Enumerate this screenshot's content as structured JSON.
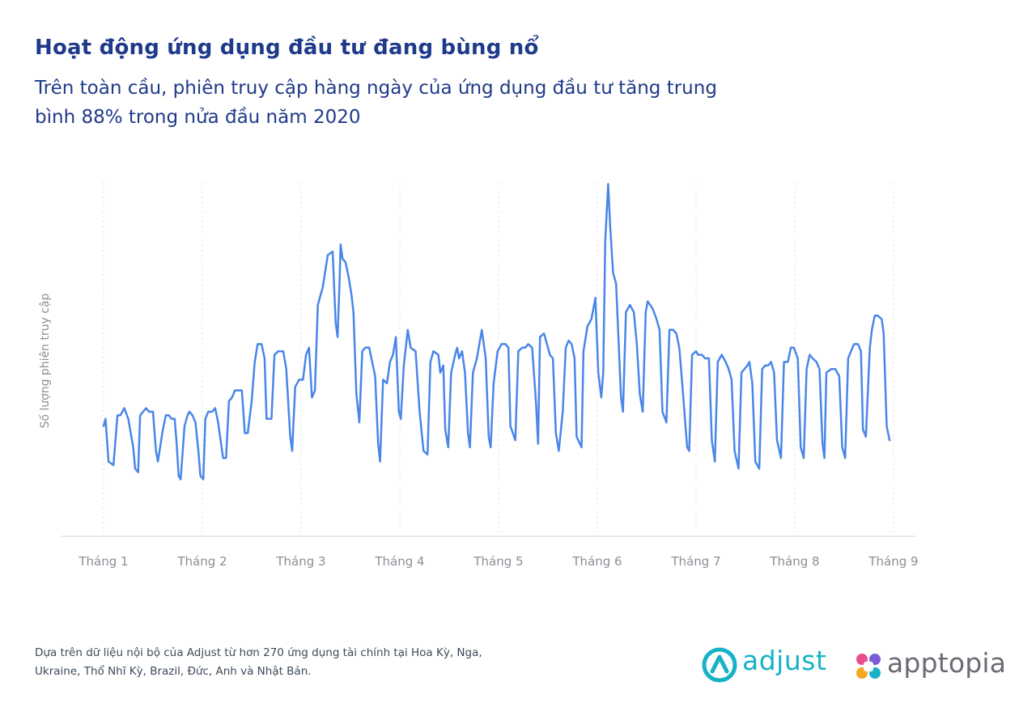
{
  "header": {
    "title": "Hoạt động ứng dụng đầu tư đang bùng nổ",
    "subtitle": "Trên toàn cầu, phiên truy cập hàng ngày của ứng dụng đầu tư tăng trung bình 88% trong nửa đầu năm 2020"
  },
  "colors": {
    "line": "#4a86e8",
    "title": "#1f3a8a",
    "grid": "#d9dde3",
    "axis": "#d0d4d9",
    "tick_label": "#8a8f96",
    "adjust_brand": "#16b3c6",
    "apptopia_text": "#6b6b73"
  },
  "chart_data": {
    "type": "line",
    "title": "",
    "xlabel": "",
    "ylabel": "Số lượng phiên truy cập",
    "xlim": [
      0,
      8
    ],
    "ylim": [
      0,
      100
    ],
    "grid": "vertical dotted lines at each month",
    "legend": "none",
    "tick_labels": [
      "Tháng 1",
      "Tháng 2",
      "Tháng 3",
      "Tháng 4",
      "Tháng 5",
      "Tháng 6",
      "Tháng 7",
      "Tháng 8",
      "Tháng 9"
    ],
    "series": [
      {
        "name": "",
        "points": [
          [
            0.0,
            31
          ],
          [
            0.02,
            33
          ],
          [
            0.05,
            21
          ],
          [
            0.1,
            20
          ],
          [
            0.14,
            34
          ],
          [
            0.17,
            34
          ],
          [
            0.21,
            36
          ],
          [
            0.25,
            33
          ],
          [
            0.3,
            25
          ],
          [
            0.32,
            19
          ],
          [
            0.35,
            18
          ],
          [
            0.37,
            34
          ],
          [
            0.4,
            35
          ],
          [
            0.43,
            36
          ],
          [
            0.46,
            35
          ],
          [
            0.5,
            35
          ],
          [
            0.53,
            24
          ],
          [
            0.55,
            21
          ],
          [
            0.6,
            30
          ],
          [
            0.63,
            34
          ],
          [
            0.66,
            34
          ],
          [
            0.69,
            33
          ],
          [
            0.72,
            33
          ],
          [
            0.74,
            26
          ],
          [
            0.76,
            17
          ],
          [
            0.78,
            16
          ],
          [
            0.82,
            31
          ],
          [
            0.85,
            34
          ],
          [
            0.87,
            35
          ],
          [
            0.9,
            34
          ],
          [
            0.93,
            32
          ],
          [
            0.96,
            24
          ],
          [
            0.98,
            17
          ],
          [
            1.01,
            16
          ],
          [
            1.03,
            33
          ],
          [
            1.06,
            35
          ],
          [
            1.1,
            35
          ],
          [
            1.13,
            36
          ],
          [
            1.16,
            32
          ],
          [
            1.21,
            22
          ],
          [
            1.24,
            22
          ],
          [
            1.27,
            38
          ],
          [
            1.3,
            39
          ],
          [
            1.33,
            41
          ],
          [
            1.37,
            41
          ],
          [
            1.4,
            41
          ],
          [
            1.43,
            29
          ],
          [
            1.46,
            29
          ],
          [
            1.5,
            38
          ],
          [
            1.53,
            49
          ],
          [
            1.56,
            54
          ],
          [
            1.6,
            54
          ],
          [
            1.63,
            50
          ],
          [
            1.65,
            33
          ],
          [
            1.7,
            33
          ],
          [
            1.73,
            51
          ],
          [
            1.77,
            52
          ],
          [
            1.82,
            52
          ],
          [
            1.85,
            47
          ],
          [
            1.89,
            28
          ],
          [
            1.91,
            24
          ],
          [
            1.94,
            42
          ],
          [
            1.98,
            44
          ],
          [
            2.02,
            44
          ],
          [
            2.05,
            51
          ],
          [
            2.08,
            53
          ],
          [
            2.11,
            39
          ],
          [
            2.14,
            41
          ],
          [
            2.17,
            65
          ],
          [
            2.22,
            70
          ],
          [
            2.27,
            79
          ],
          [
            2.32,
            80
          ],
          [
            2.35,
            60
          ],
          [
            2.37,
            56
          ],
          [
            2.39,
            72
          ],
          [
            2.4,
            82
          ],
          [
            2.42,
            78
          ],
          [
            2.45,
            77
          ],
          [
            2.48,
            73
          ],
          [
            2.51,
            68
          ],
          [
            2.53,
            63
          ],
          [
            2.56,
            40
          ],
          [
            2.59,
            32
          ],
          [
            2.62,
            52
          ],
          [
            2.65,
            53
          ],
          [
            2.69,
            53
          ],
          [
            2.72,
            49
          ],
          [
            2.75,
            45
          ],
          [
            2.78,
            26
          ],
          [
            2.8,
            21
          ],
          [
            2.83,
            44
          ],
          [
            2.87,
            43
          ],
          [
            2.9,
            49
          ],
          [
            2.93,
            51
          ],
          [
            2.96,
            56
          ],
          [
            2.99,
            35
          ],
          [
            3.01,
            33
          ],
          [
            3.04,
            48
          ],
          [
            3.08,
            58
          ],
          [
            3.11,
            53
          ],
          [
            3.16,
            52
          ],
          [
            3.2,
            35
          ],
          [
            3.24,
            24
          ],
          [
            3.28,
            23
          ],
          [
            3.31,
            49
          ],
          [
            3.34,
            52
          ],
          [
            3.39,
            51
          ],
          [
            3.41,
            46
          ],
          [
            3.44,
            48
          ],
          [
            3.46,
            30
          ],
          [
            3.49,
            25
          ],
          [
            3.52,
            46
          ],
          [
            3.56,
            51
          ],
          [
            3.58,
            53
          ],
          [
            3.6,
            50
          ],
          [
            3.63,
            52
          ],
          [
            3.66,
            46
          ],
          [
            3.69,
            29
          ],
          [
            3.71,
            25
          ],
          [
            3.74,
            46
          ],
          [
            3.78,
            50
          ],
          [
            3.83,
            58
          ],
          [
            3.87,
            50
          ],
          [
            3.9,
            28
          ],
          [
            3.92,
            25
          ],
          [
            3.95,
            43
          ],
          [
            3.99,
            52
          ],
          [
            4.03,
            54
          ],
          [
            4.07,
            54
          ],
          [
            4.1,
            53
          ],
          [
            4.12,
            31
          ],
          [
            4.17,
            27
          ],
          [
            4.2,
            52
          ],
          [
            4.24,
            53
          ],
          [
            4.27,
            53
          ],
          [
            4.3,
            54
          ],
          [
            4.34,
            53
          ],
          [
            4.38,
            37
          ],
          [
            4.4,
            26
          ],
          [
            4.42,
            56
          ],
          [
            4.46,
            57
          ],
          [
            4.48,
            55
          ],
          [
            4.52,
            51
          ],
          [
            4.55,
            50
          ],
          [
            4.58,
            29
          ],
          [
            4.61,
            24
          ],
          [
            4.65,
            35
          ],
          [
            4.68,
            53
          ],
          [
            4.71,
            55
          ],
          [
            4.74,
            54
          ],
          [
            4.77,
            50
          ],
          [
            4.79,
            28
          ],
          [
            4.84,
            25
          ],
          [
            4.86,
            52
          ],
          [
            4.9,
            59
          ],
          [
            4.94,
            61
          ],
          [
            4.98,
            67
          ],
          [
            5.01,
            46
          ],
          [
            5.04,
            39
          ],
          [
            5.06,
            46
          ],
          [
            5.08,
            83
          ],
          [
            5.11,
            99
          ],
          [
            5.13,
            87
          ],
          [
            5.16,
            74
          ],
          [
            5.19,
            71
          ],
          [
            5.22,
            52
          ],
          [
            5.24,
            39
          ],
          [
            5.26,
            35
          ],
          [
            5.29,
            63
          ],
          [
            5.33,
            65
          ],
          [
            5.37,
            63
          ],
          [
            5.4,
            54
          ],
          [
            5.43,
            40
          ],
          [
            5.46,
            35
          ],
          [
            5.49,
            63
          ],
          [
            5.51,
            66
          ],
          [
            5.56,
            64
          ],
          [
            5.6,
            61
          ],
          [
            5.63,
            58
          ],
          [
            5.66,
            35
          ],
          [
            5.7,
            32
          ],
          [
            5.73,
            58
          ],
          [
            5.77,
            58
          ],
          [
            5.8,
            57
          ],
          [
            5.83,
            53
          ],
          [
            5.86,
            43
          ],
          [
            5.91,
            25
          ],
          [
            5.93,
            24
          ],
          [
            5.96,
            51
          ],
          [
            6.0,
            52
          ],
          [
            6.02,
            51
          ],
          [
            6.06,
            51
          ],
          [
            6.09,
            50
          ],
          [
            6.13,
            50
          ],
          [
            6.16,
            27
          ],
          [
            6.19,
            21
          ],
          [
            6.22,
            49
          ],
          [
            6.26,
            51
          ],
          [
            6.3,
            49
          ],
          [
            6.33,
            47
          ],
          [
            6.36,
            44
          ],
          [
            6.39,
            24
          ],
          [
            6.43,
            19
          ],
          [
            6.46,
            46
          ],
          [
            6.49,
            47
          ],
          [
            6.52,
            48
          ],
          [
            6.54,
            49
          ],
          [
            6.57,
            43
          ],
          [
            6.6,
            21
          ],
          [
            6.64,
            19
          ],
          [
            6.67,
            47
          ],
          [
            6.7,
            48
          ],
          [
            6.73,
            48
          ],
          [
            6.76,
            49
          ],
          [
            6.79,
            46
          ],
          [
            6.82,
            27
          ],
          [
            6.86,
            22
          ],
          [
            6.89,
            49
          ],
          [
            6.93,
            49
          ],
          [
            6.96,
            53
          ],
          [
            6.99,
            53
          ],
          [
            7.03,
            50
          ],
          [
            7.06,
            25
          ],
          [
            7.09,
            22
          ],
          [
            7.12,
            47
          ],
          [
            7.15,
            51
          ],
          [
            7.18,
            50
          ],
          [
            7.22,
            49
          ],
          [
            7.25,
            47
          ],
          [
            7.28,
            26
          ],
          [
            7.3,
            22
          ],
          [
            7.32,
            46
          ],
          [
            7.37,
            47
          ],
          [
            7.41,
            47
          ],
          [
            7.45,
            45
          ],
          [
            7.48,
            25
          ],
          [
            7.51,
            22
          ],
          [
            7.54,
            50
          ],
          [
            7.57,
            52
          ],
          [
            7.6,
            54
          ],
          [
            7.64,
            54
          ],
          [
            7.67,
            52
          ],
          [
            7.69,
            30
          ],
          [
            7.72,
            28
          ],
          [
            7.76,
            53
          ],
          [
            7.78,
            58
          ],
          [
            7.81,
            62
          ],
          [
            7.84,
            62
          ],
          [
            7.88,
            61
          ],
          [
            7.9,
            57
          ],
          [
            7.93,
            31
          ],
          [
            7.96,
            27
          ]
        ]
      }
    ]
  },
  "footnote": {
    "line1": "Dựa trên dữ liệu nội bộ của Adjust từ hơn 270 ứng dụng tài chính tại Hoa Kỳ, Nga,",
    "line2": "Ukraine, Thổ Nhĩ Kỳ, Brazil, Đức, Anh và Nhật Bản."
  },
  "logos": {
    "adjust": "adjust",
    "apptopia": "apptopia"
  }
}
